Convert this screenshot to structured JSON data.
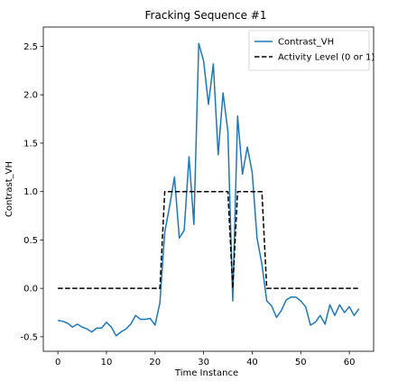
{
  "chart_data": {
    "type": "line",
    "title": "Fracking Sequence #1",
    "xlabel": "Time Instance",
    "ylabel": "Contrast_VH",
    "xlim": [
      -3,
      65
    ],
    "ylim": [
      -0.65,
      2.7
    ],
    "xticks": [
      0,
      10,
      20,
      30,
      40,
      50,
      60
    ],
    "yticks": [
      -0.5,
      0.0,
      0.5,
      1.0,
      1.5,
      2.0,
      2.5
    ],
    "grid": false,
    "legend_position": "top-right",
    "series": [
      {
        "name": "Contrast_VH",
        "color": "#1f77b4",
        "style": "solid",
        "x": [
          0,
          1,
          2,
          3,
          4,
          5,
          6,
          7,
          8,
          9,
          10,
          11,
          12,
          13,
          14,
          15,
          16,
          17,
          18,
          19,
          20,
          21,
          22,
          23,
          24,
          25,
          26,
          27,
          28,
          29,
          30,
          31,
          32,
          33,
          34,
          35,
          36,
          37,
          38,
          39,
          40,
          41,
          42,
          43,
          44,
          45,
          46,
          47,
          48,
          49,
          50,
          51,
          52,
          53,
          54,
          55,
          56,
          57,
          58,
          59,
          60,
          61,
          62
        ],
        "y": [
          -0.33,
          -0.34,
          -0.36,
          -0.4,
          -0.37,
          -0.4,
          -0.42,
          -0.45,
          -0.41,
          -0.41,
          -0.35,
          -0.4,
          -0.49,
          -0.45,
          -0.42,
          -0.37,
          -0.28,
          -0.32,
          -0.32,
          -0.31,
          -0.38,
          -0.15,
          0.58,
          0.85,
          1.15,
          0.52,
          0.6,
          1.36,
          0.66,
          2.53,
          2.35,
          1.9,
          2.32,
          1.38,
          2.02,
          1.62,
          -0.13,
          1.78,
          1.18,
          1.46,
          1.2,
          0.52,
          0.25,
          -0.13,
          -0.18,
          -0.3,
          -0.23,
          -0.12,
          -0.09,
          -0.09,
          -0.13,
          -0.19,
          -0.38,
          -0.35,
          -0.28,
          -0.37,
          -0.17,
          -0.28,
          -0.17,
          -0.25,
          -0.19,
          -0.28,
          -0.21
        ]
      },
      {
        "name": "Activity Level (0 or 1)",
        "color": "#000000",
        "style": "dashed",
        "x": [
          0,
          21,
          22,
          35,
          36,
          37,
          42,
          43,
          62
        ],
        "y": [
          0,
          0,
          1,
          1,
          0,
          1,
          1,
          0,
          0
        ]
      }
    ]
  }
}
